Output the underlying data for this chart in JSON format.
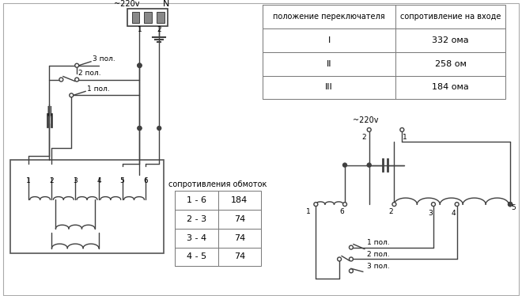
{
  "bg_color": "#ffffff",
  "line_color": "#404040",
  "table1_header": [
    "положение переключателя",
    "сопротивление на входе"
  ],
  "table1_rows": [
    [
      "I",
      "332 ома"
    ],
    [
      "II",
      "258 ом"
    ],
    [
      "III",
      "184 ома"
    ]
  ],
  "table2_header": "сопротивления обмоток",
  "table2_rows": [
    [
      "1 - 6",
      "184"
    ],
    [
      "2 - 3",
      "74"
    ],
    [
      "3 - 4",
      "74"
    ],
    [
      "4 - 5",
      "74"
    ]
  ],
  "label_220v_left": "~220v",
  "label_N_left": "N",
  "label_220v_right": "~220v",
  "label_pol1": "1 пол.",
  "label_pol2": "2 пол.",
  "label_pol3": "3 пол."
}
